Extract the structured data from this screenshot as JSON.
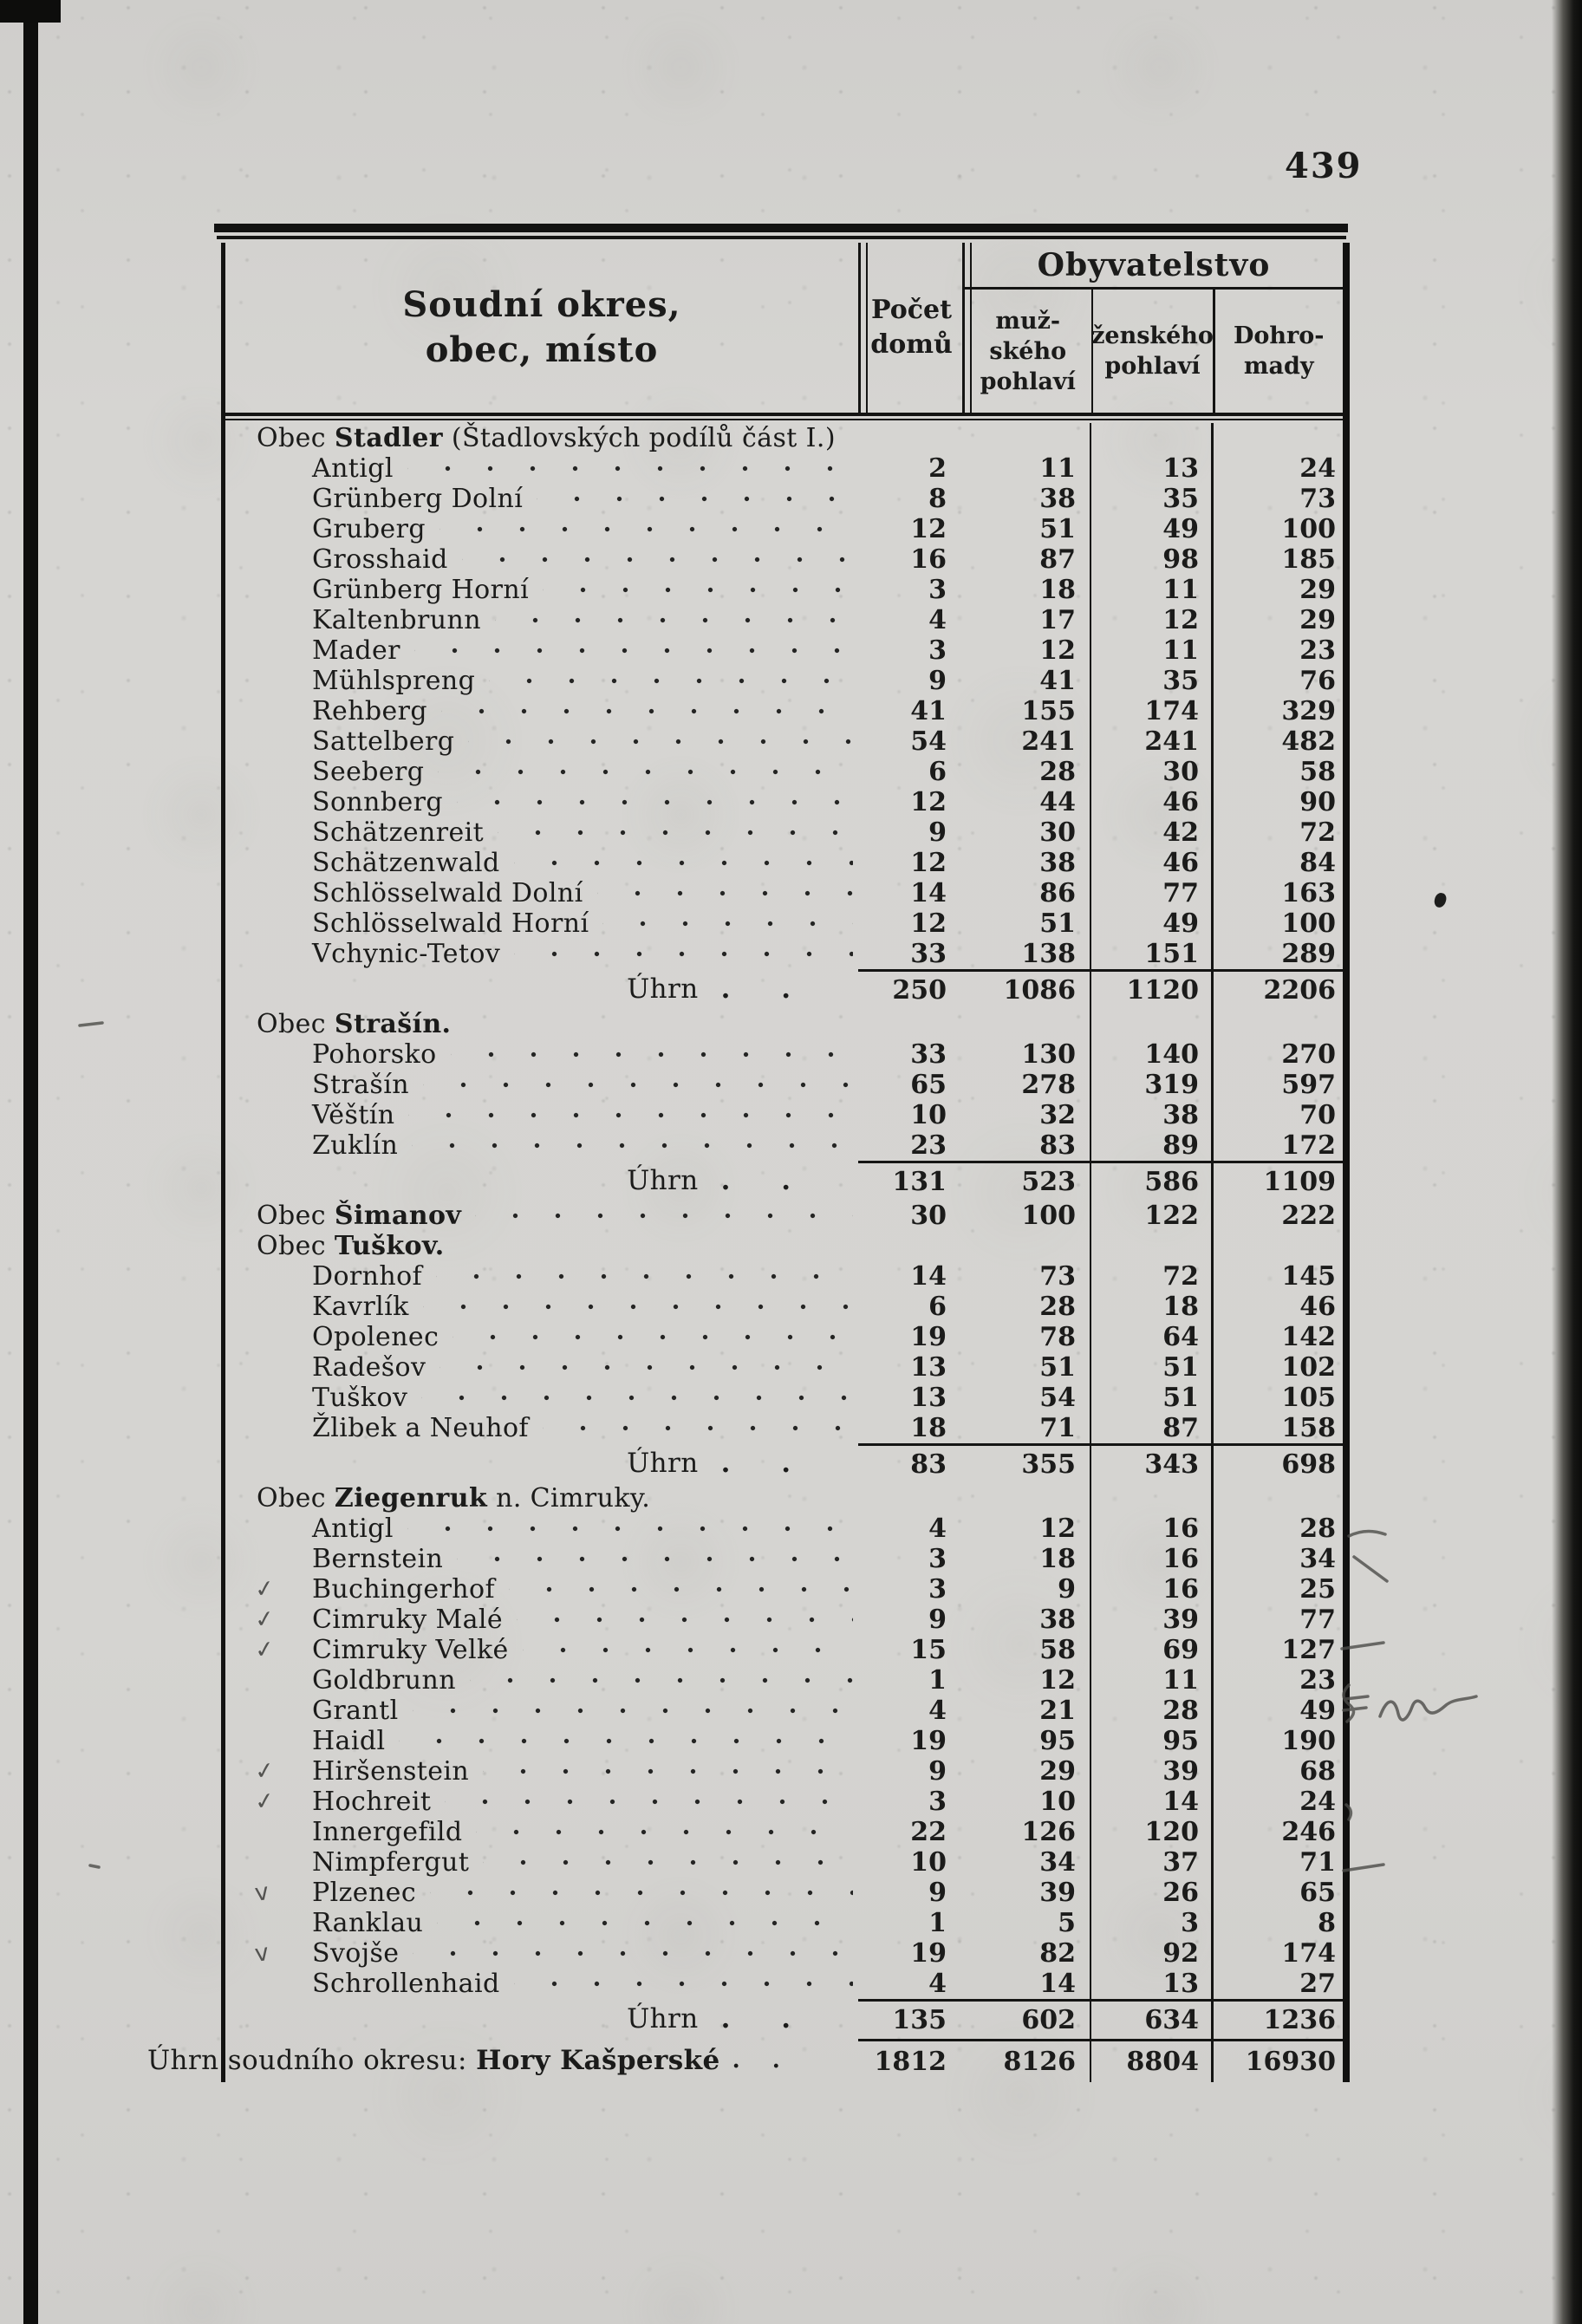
{
  "page": {
    "number": "439"
  },
  "table": {
    "header": {
      "col_place": "Soudní okres,\nobec, místo",
      "col_houses": "Počet\ndomů",
      "col_population": "Obyvatelstvo",
      "col_male": "muž-\nského\npohlaví",
      "col_female": "ženského\npohlaví",
      "col_total": "Dohro-\nmady"
    },
    "total_trailing_dots": ". .",
    "grand_trailing_dots": ". .",
    "rows": [
      {
        "kind": "sec",
        "prefix": "Obec ",
        "bold": "Stadler",
        "suffix": " (Štadlovských podílů část I.)"
      },
      {
        "kind": "place",
        "name": "Antigl",
        "values": [
          "2",
          "11",
          "13",
          "24"
        ]
      },
      {
        "kind": "place",
        "name": "Grünberg Dolní",
        "values": [
          "8",
          "38",
          "35",
          "73"
        ]
      },
      {
        "kind": "place",
        "name": "Gruberg",
        "values": [
          "12",
          "51",
          "49",
          "100"
        ]
      },
      {
        "kind": "place",
        "name": "Grosshaid",
        "values": [
          "16",
          "87",
          "98",
          "185"
        ]
      },
      {
        "kind": "place",
        "name": "Grünberg Horní",
        "values": [
          "3",
          "18",
          "11",
          "29"
        ]
      },
      {
        "kind": "place",
        "name": "Kaltenbrunn",
        "values": [
          "4",
          "17",
          "12",
          "29"
        ]
      },
      {
        "kind": "place",
        "name": "Mader",
        "values": [
          "3",
          "12",
          "11",
          "23"
        ]
      },
      {
        "kind": "place",
        "name": "Mühlspreng",
        "values": [
          "9",
          "41",
          "35",
          "76"
        ]
      },
      {
        "kind": "place",
        "name": "Rehberg",
        "values": [
          "41",
          "155",
          "174",
          "329"
        ]
      },
      {
        "kind": "place",
        "name": "Sattelberg",
        "values": [
          "54",
          "241",
          "241",
          "482"
        ]
      },
      {
        "kind": "place",
        "name": "Seeberg",
        "values": [
          "6",
          "28",
          "30",
          "58"
        ]
      },
      {
        "kind": "place",
        "name": "Sonnberg",
        "values": [
          "12",
          "44",
          "46",
          "90"
        ]
      },
      {
        "kind": "place",
        "name": "Schätzenreit",
        "values": [
          "9",
          "30",
          "42",
          "72"
        ]
      },
      {
        "kind": "place",
        "name": "Schätzenwald",
        "values": [
          "12",
          "38",
          "46",
          "84"
        ]
      },
      {
        "kind": "place",
        "name": "Schlösselwald Dolní",
        "values": [
          "14",
          "86",
          "77",
          "163"
        ]
      },
      {
        "kind": "place",
        "name": "Schlösselwald Horní",
        "values": [
          "12",
          "51",
          "49",
          "100"
        ]
      },
      {
        "kind": "place",
        "name": "Vchynic-Tetov",
        "values": [
          "33",
          "138",
          "151",
          "289"
        ]
      },
      {
        "kind": "total",
        "label": "Úhrn",
        "values": [
          "250",
          "1086",
          "1120",
          "2206"
        ]
      },
      {
        "kind": "sec",
        "prefix": "Obec ",
        "bold": "Strašín.",
        "suffix": ""
      },
      {
        "kind": "place",
        "name": "Pohorsko",
        "values": [
          "33",
          "130",
          "140",
          "270"
        ]
      },
      {
        "kind": "place",
        "name": "Strašín",
        "values": [
          "65",
          "278",
          "319",
          "597"
        ]
      },
      {
        "kind": "place",
        "name": "Věštín",
        "values": [
          "10",
          "32",
          "38",
          "70"
        ]
      },
      {
        "kind": "place",
        "name": "Zuklín",
        "values": [
          "23",
          "83",
          "89",
          "172"
        ]
      },
      {
        "kind": "total",
        "label": "Úhrn",
        "values": [
          "131",
          "523",
          "586",
          "1109"
        ]
      },
      {
        "kind": "secv",
        "prefix": "Obec ",
        "bold": "Šimanov",
        "suffix": "",
        "values": [
          "30",
          "100",
          "122",
          "222"
        ]
      },
      {
        "kind": "sec",
        "prefix": "Obec ",
        "bold": "Tuškov.",
        "suffix": ""
      },
      {
        "kind": "place",
        "name": "Dornhof",
        "values": [
          "14",
          "73",
          "72",
          "145"
        ]
      },
      {
        "kind": "place",
        "name": "Kavrlík",
        "values": [
          "6",
          "28",
          "18",
          "46"
        ]
      },
      {
        "kind": "place",
        "name": "Opolenec",
        "values": [
          "19",
          "78",
          "64",
          "142"
        ]
      },
      {
        "kind": "place",
        "name": "Radešov",
        "values": [
          "13",
          "51",
          "51",
          "102"
        ]
      },
      {
        "kind": "place",
        "name": "Tuškov",
        "values": [
          "13",
          "54",
          "51",
          "105"
        ]
      },
      {
        "kind": "place",
        "name": "Žlibek a Neuhof",
        "values": [
          "18",
          "71",
          "87",
          "158"
        ]
      },
      {
        "kind": "total",
        "label": "Úhrn",
        "values": [
          "83",
          "355",
          "343",
          "698"
        ]
      },
      {
        "kind": "sec",
        "prefix": "Obec ",
        "bold": "Ziegenruk",
        "suffix": " n. Cimruky."
      },
      {
        "kind": "place",
        "name": "Antigl",
        "values": [
          "4",
          "12",
          "16",
          "28"
        ]
      },
      {
        "kind": "place",
        "name": "Bernstein",
        "values": [
          "3",
          "18",
          "16",
          "34"
        ]
      },
      {
        "kind": "place",
        "name": "Buchingerhof",
        "mark": "✓",
        "values": [
          "3",
          "9",
          "16",
          "25"
        ]
      },
      {
        "kind": "place",
        "name": "Cimruky Malé",
        "mark": "✓",
        "values": [
          "9",
          "38",
          "39",
          "77"
        ]
      },
      {
        "kind": "place",
        "name": "Cimruky Velké",
        "mark": "✓",
        "values": [
          "15",
          "58",
          "69",
          "127"
        ]
      },
      {
        "kind": "place",
        "name": "Goldbrunn",
        "values": [
          "1",
          "12",
          "11",
          "23"
        ]
      },
      {
        "kind": "place",
        "name": "Grantl",
        "values": [
          "4",
          "21",
          "28",
          "49"
        ]
      },
      {
        "kind": "place",
        "name": "Haidl",
        "values": [
          "19",
          "95",
          "95",
          "190"
        ]
      },
      {
        "kind": "place",
        "name": "Hiršenstein",
        "mark": "✓",
        "values": [
          "9",
          "29",
          "39",
          "68"
        ]
      },
      {
        "kind": "place",
        "name": "Hochreit",
        "mark": "✓",
        "values": [
          "3",
          "10",
          "14",
          "24"
        ]
      },
      {
        "kind": "place",
        "name": "Innergefild",
        "values": [
          "22",
          "126",
          "120",
          "246"
        ]
      },
      {
        "kind": "place",
        "name": "Nimpfergut",
        "values": [
          "10",
          "34",
          "37",
          "71"
        ]
      },
      {
        "kind": "place",
        "name": "Plzenec",
        "mark": "v",
        "values": [
          "9",
          "39",
          "26",
          "65"
        ]
      },
      {
        "kind": "place",
        "name": "Ranklau",
        "values": [
          "1",
          "5",
          "3",
          "8"
        ]
      },
      {
        "kind": "place",
        "name": "Svojše",
        "mark": "v",
        "values": [
          "19",
          "82",
          "92",
          "174"
        ]
      },
      {
        "kind": "place",
        "name": "Schrollenhaid",
        "values": [
          "4",
          "14",
          "13",
          "27"
        ]
      },
      {
        "kind": "total",
        "label": "Úhrn",
        "values": [
          "135",
          "602",
          "634",
          "1236"
        ]
      },
      {
        "kind": "grand",
        "prefix": "Úhrn soudního okresu: ",
        "bold": "Hory Kašperské",
        "suffix": "",
        "values": [
          "1812",
          "8126",
          "8804",
          "16930"
        ]
      }
    ]
  }
}
